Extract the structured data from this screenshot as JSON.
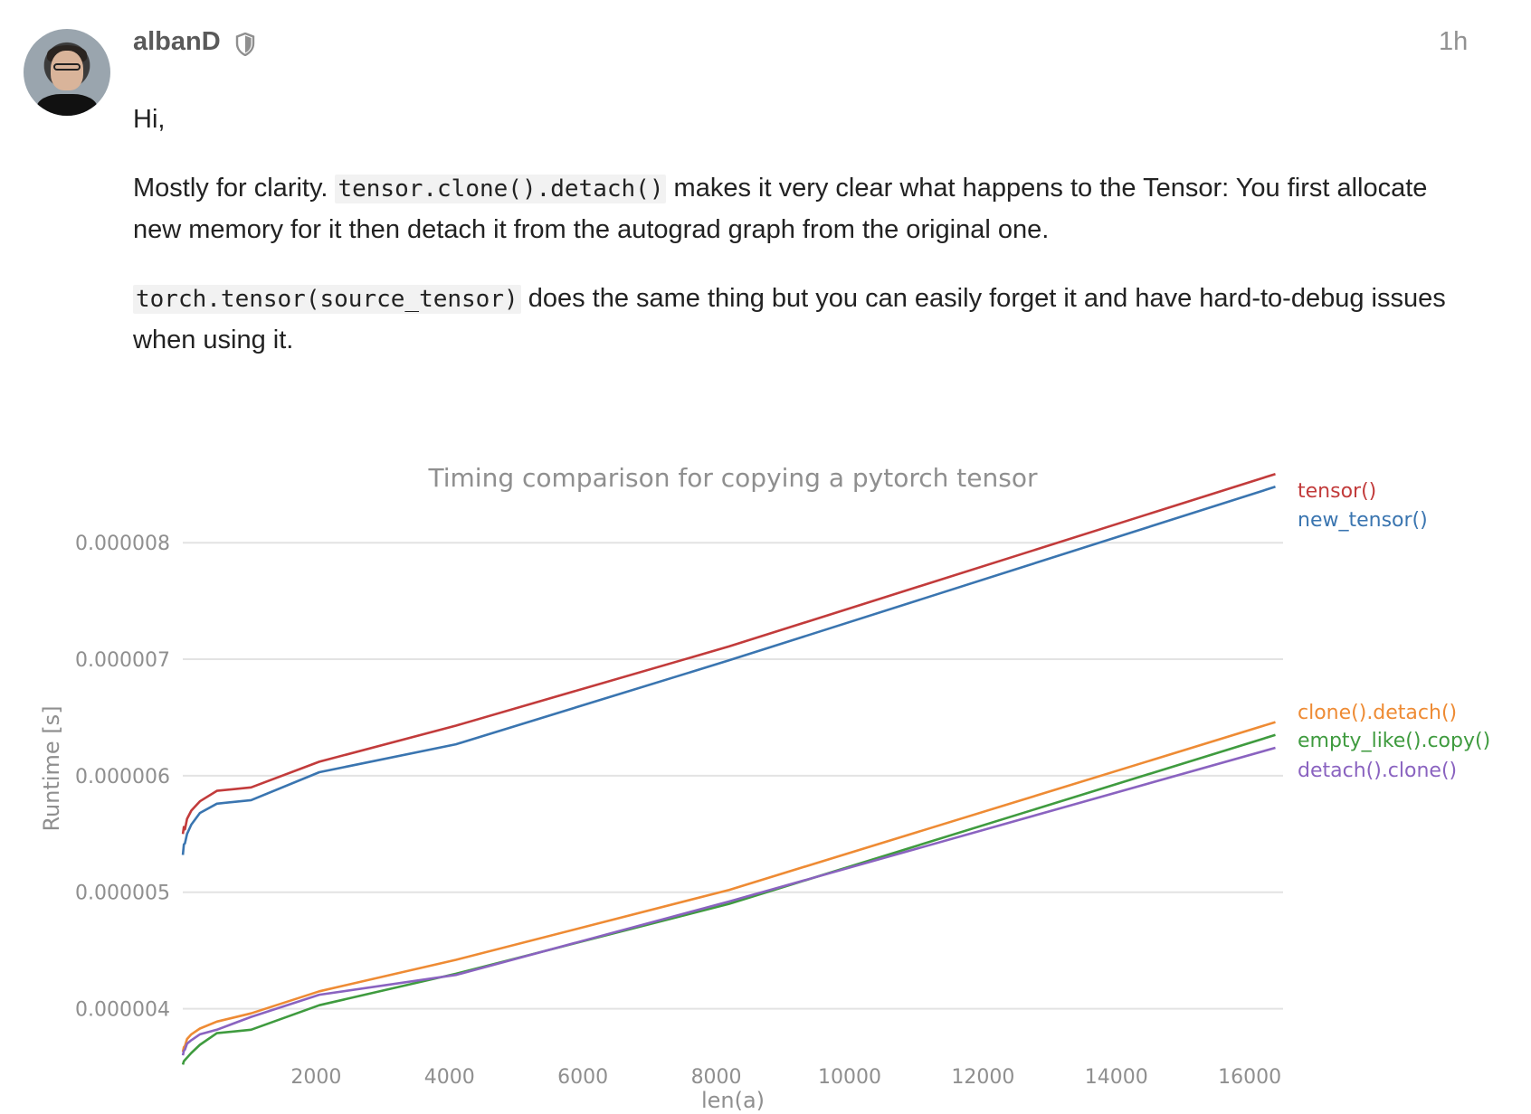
{
  "post": {
    "username": "albanD",
    "time": "1h",
    "greeting": "Hi,",
    "p1_prefix": "Mostly for clarity.",
    "p1_code": "tensor.clone().detach()",
    "p1_rest": "makes it very clear what happens to the Tensor: You first allocate new memory for it then detach it from the autograd graph from the original one.",
    "p2_code": "torch.tensor(source_tensor)",
    "p2_rest": "does the same thing but you can easily forget it and have hard-to-debug issues when using it.",
    "icons": {
      "avatar": "user-avatar",
      "moderator": "shield-icon"
    }
  },
  "chart_data": {
    "type": "line",
    "title": "Timing comparison for copying a pytorch tensor",
    "xlabel": "len(a)",
    "ylabel": "Runtime [s]",
    "xlim": [
      0,
      16500
    ],
    "ylim": [
      3.5e-06,
      8.7e-06
    ],
    "xticks": [
      2000,
      4000,
      6000,
      8000,
      10000,
      12000,
      14000,
      16000
    ],
    "yticks": [
      4e-06,
      5e-06,
      6e-06,
      7e-06,
      8e-06
    ],
    "ytick_labels": [
      "0.000004",
      "0.000005",
      "0.000006",
      "0.000007",
      "0.000008"
    ],
    "grid": "horizontal",
    "legend": "inline labels at right end of each line",
    "series": [
      {
        "name": "tensor()",
        "color": "#c23b3b",
        "x": [
          1,
          16,
          32,
          64,
          128,
          256,
          512,
          1024,
          2048,
          4096,
          8192,
          16384
        ],
        "y": [
          5.5e-06,
          5.56e-06,
          5.54e-06,
          5.63e-06,
          5.7e-06,
          5.78e-06,
          5.87e-06,
          5.9e-06,
          6.12e-06,
          6.43e-06,
          7.11e-06,
          8.59e-06
        ]
      },
      {
        "name": "new_tensor()",
        "color": "#3a75b0",
        "x": [
          1,
          16,
          32,
          64,
          128,
          256,
          512,
          1024,
          2048,
          4096,
          8192,
          16384
        ],
        "y": [
          5.32e-06,
          5.41e-06,
          5.42e-06,
          5.5e-06,
          5.58e-06,
          5.68e-06,
          5.76e-06,
          5.79e-06,
          6.03e-06,
          6.27e-06,
          6.99e-06,
          8.48e-06
        ]
      },
      {
        "name": "clone().detach()",
        "color": "#ee8b34",
        "x": [
          1,
          16,
          32,
          64,
          128,
          256,
          512,
          1024,
          2048,
          4096,
          8192,
          16384
        ],
        "y": [
          3.63e-06,
          3.67e-06,
          3.68e-06,
          3.74e-06,
          3.78e-06,
          3.83e-06,
          3.89e-06,
          3.96e-06,
          4.15e-06,
          4.42e-06,
          5.02e-06,
          6.46e-06
        ]
      },
      {
        "name": "empty_like().copy()",
        "color": "#3f9b3f",
        "x": [
          1,
          16,
          32,
          64,
          128,
          256,
          512,
          1024,
          2048,
          4096,
          8192,
          16384
        ],
        "y": [
          3.52e-06,
          3.55e-06,
          3.56e-06,
          3.58e-06,
          3.62e-06,
          3.69e-06,
          3.79e-06,
          3.82e-06,
          4.03e-06,
          4.3e-06,
          4.9e-06,
          6.35e-06
        ]
      },
      {
        "name": "detach().clone()",
        "color": "#8a63c0",
        "x": [
          1,
          16,
          32,
          64,
          128,
          256,
          512,
          1024,
          2048,
          4096,
          8192,
          16384
        ],
        "y": [
          3.6e-06,
          3.64e-06,
          3.65e-06,
          3.7e-06,
          3.73e-06,
          3.78e-06,
          3.82e-06,
          3.93e-06,
          4.12e-06,
          4.29e-06,
          4.92e-06,
          6.24e-06
        ]
      }
    ]
  }
}
